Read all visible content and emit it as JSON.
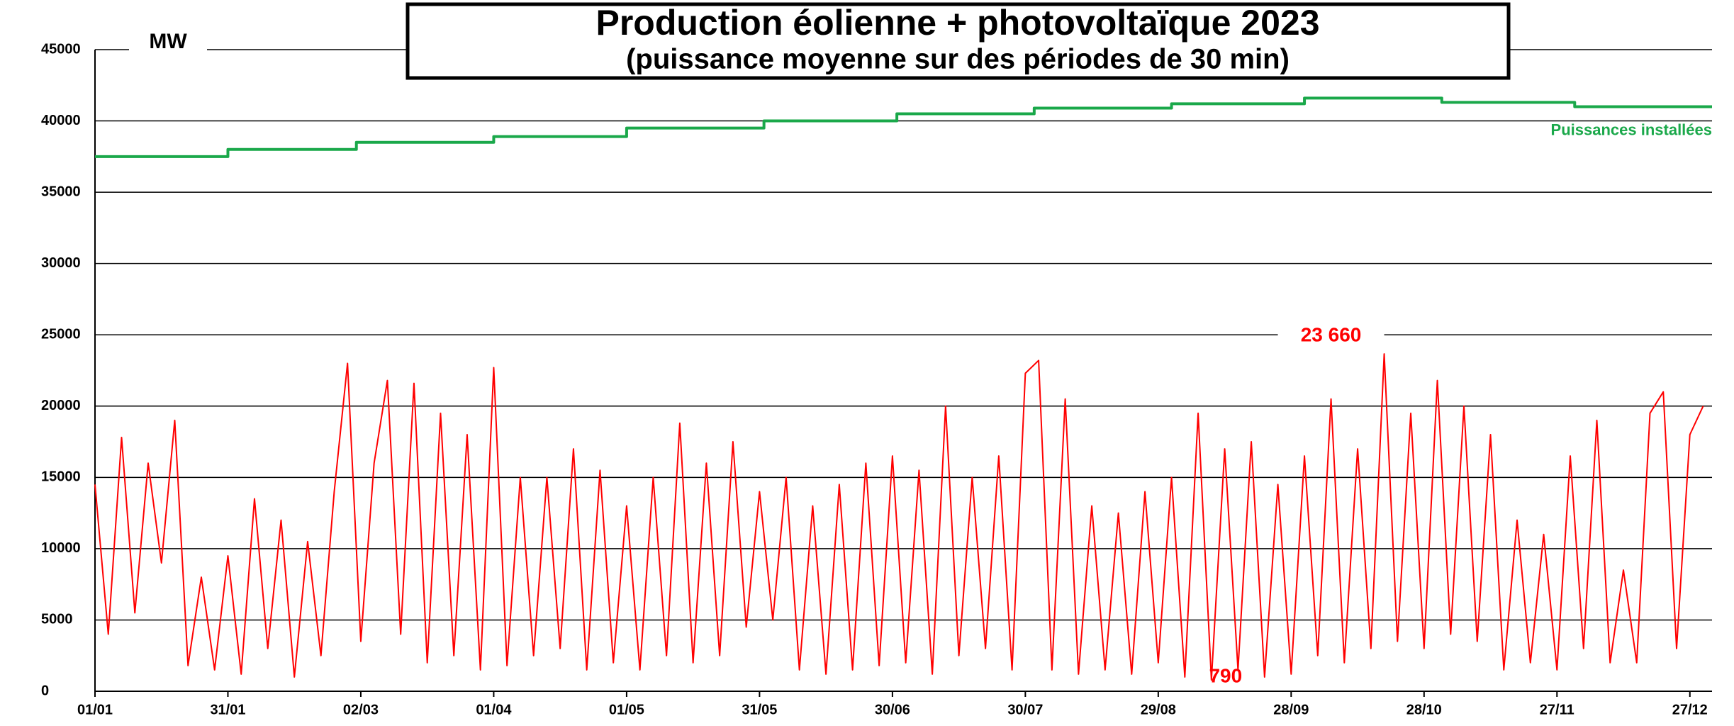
{
  "chart_data": {
    "type": "line",
    "title": "Production éolienne + photovoltaïque 2023",
    "subtitle": "(puissance moyenne sur des périodes de 30 min)",
    "y_unit": "MW",
    "ylim": [
      0,
      45000
    ],
    "yticks": [
      0,
      5000,
      10000,
      15000,
      20000,
      25000,
      30000,
      35000,
      40000,
      45000
    ],
    "xlim": [
      0,
      365
    ],
    "xticks": [
      {
        "value": 0,
        "label": "01/01"
      },
      {
        "value": 30,
        "label": "31/01"
      },
      {
        "value": 60,
        "label": "02/03"
      },
      {
        "value": 90,
        "label": "01/04"
      },
      {
        "value": 120,
        "label": "01/05"
      },
      {
        "value": 150,
        "label": "31/05"
      },
      {
        "value": 180,
        "label": "30/06"
      },
      {
        "value": 210,
        "label": "30/07"
      },
      {
        "value": 240,
        "label": "29/08"
      },
      {
        "value": 270,
        "label": "28/09"
      },
      {
        "value": 300,
        "label": "28/10"
      },
      {
        "value": 330,
        "label": "27/11"
      },
      {
        "value": 360,
        "label": "27/12"
      }
    ],
    "grid": true,
    "series": [
      {
        "color": "#ff0000",
        "x": [
          0,
          3,
          6,
          9,
          12,
          15,
          18,
          21,
          24,
          27,
          30,
          33,
          36,
          39,
          42,
          45,
          48,
          51,
          54,
          57,
          60,
          63,
          66,
          69,
          72,
          75,
          78,
          81,
          84,
          87,
          90,
          93,
          96,
          99,
          102,
          105,
          108,
          111,
          114,
          117,
          120,
          123,
          126,
          129,
          132,
          135,
          138,
          141,
          144,
          147,
          150,
          153,
          156,
          159,
          162,
          165,
          168,
          171,
          174,
          177,
          180,
          183,
          186,
          189,
          192,
          195,
          198,
          201,
          204,
          207,
          210,
          213,
          216,
          219,
          222,
          225,
          228,
          231,
          234,
          237,
          240,
          243,
          246,
          249,
          252,
          255,
          258,
          261,
          264,
          267,
          270,
          273,
          276,
          279,
          282,
          285,
          288,
          291,
          294,
          297,
          300,
          303,
          306,
          309,
          312,
          315,
          318,
          321,
          324,
          327,
          330,
          333,
          336,
          339,
          342,
          345,
          348,
          351,
          354,
          357,
          360,
          363
        ],
        "values": [
          14500,
          4000,
          17800,
          5500,
          16000,
          9000,
          19000,
          1800,
          8000,
          1500,
          9500,
          1200,
          13500,
          3000,
          12000,
          1000,
          10500,
          2500,
          14000,
          23000,
          3500,
          16000,
          21800,
          4000,
          21600,
          2000,
          19500,
          2500,
          18000,
          1500,
          22700,
          1800,
          15000,
          2500,
          15000,
          3000,
          17000,
          1500,
          15500,
          2000,
          13000,
          1500,
          15000,
          2500,
          18800,
          2000,
          16000,
          2500,
          17500,
          4500,
          14000,
          5000,
          15000,
          1500,
          13000,
          1200,
          14500,
          1500,
          16000,
          1800,
          16500,
          2000,
          15500,
          1200,
          20000,
          2500,
          15000,
          3000,
          16500,
          1500,
          22300,
          23200,
          1500,
          20500,
          1200,
          13000,
          1500,
          12500,
          1200,
          14000,
          2000,
          15000,
          1000,
          19500,
          790,
          17000,
          1500,
          17500,
          1000,
          14500,
          1200,
          16500,
          2500,
          20500,
          2000,
          17000,
          3000,
          23660,
          3500,
          19500,
          3000,
          21800,
          4000,
          20000,
          3500,
          18000,
          1500,
          12000,
          2000,
          11000,
          1500,
          16500,
          3000,
          19000,
          2000,
          8500,
          2000,
          19500,
          21000,
          3000,
          18000,
          20000
        ]
      },
      {
        "name": "Puissances installées",
        "color": "#1aa84a",
        "step": true,
        "x": [
          0,
          30,
          59,
          90,
          120,
          151,
          181,
          212,
          243,
          273,
          304,
          334
        ],
        "values": [
          37500,
          38000,
          38500,
          38900,
          39500,
          40000,
          40500,
          40900,
          41200,
          41600,
          41300,
          41000
        ]
      }
    ],
    "annotations": [
      {
        "label": "23 660",
        "value": 23660,
        "x": 291
      },
      {
        "label": "790",
        "value": 790,
        "x": 252
      }
    ]
  }
}
